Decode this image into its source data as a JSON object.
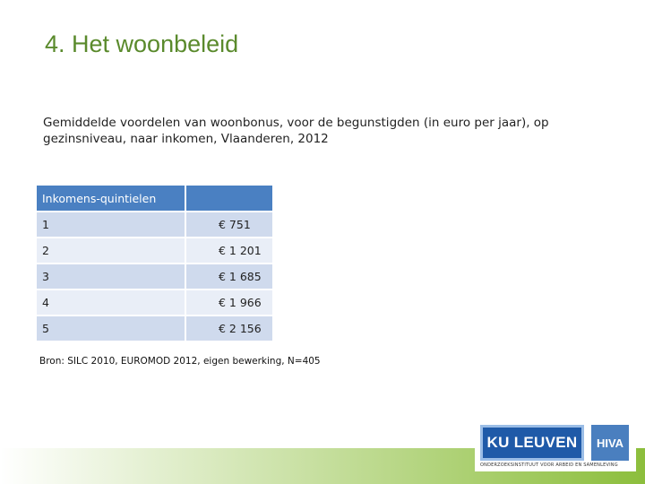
{
  "slide": {
    "title": "4. Het woonbeleid",
    "subtitle": "Gemiddelde voordelen van woonbonus, voor de begunstigden (in euro per jaar), op gezinsniveau, naar inkomen, Vlaanderen, 2012"
  },
  "table": {
    "headers": [
      "Inkomens-quintielen",
      ""
    ],
    "rows": [
      {
        "quintile": "1",
        "value": "€ 751"
      },
      {
        "quintile": "2",
        "value": "€ 1 201"
      },
      {
        "quintile": "3",
        "value": "€ 1 685"
      },
      {
        "quintile": "4",
        "value": "€ 1 966"
      },
      {
        "quintile": "5",
        "value": "€ 2 156"
      }
    ]
  },
  "source": "Bron: SILC 2010, EUROMOD 2012, eigen bewerking, N=405",
  "logos": {
    "ku_leuven": "KU LEUVEN",
    "hiva": "HIVA",
    "tagline": "ONDERZOEKSINSTITUUT VOOR ARBEID EN SAMENLEVING"
  },
  "colors": {
    "title": "#5a8a2c",
    "header_fill": "#4a80c2",
    "row_dark": "#cfdaed",
    "row_light": "#e9eef7",
    "band": "#8cbe3c"
  }
}
